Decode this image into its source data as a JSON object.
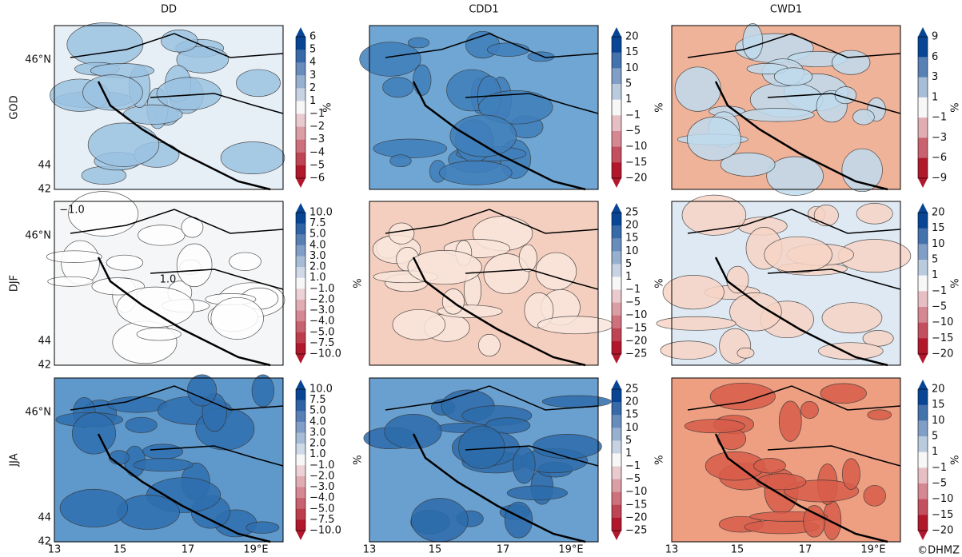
{
  "columns": [
    "DD",
    "CDD1",
    "CWD1"
  ],
  "rows": [
    "GOD",
    "DJF",
    "JJA"
  ],
  "y_ticks": [
    "46°N",
    "44",
    "42"
  ],
  "x_ticks": [
    "13",
    "15",
    "17",
    "19°E"
  ],
  "unit": "%",
  "colorbars": [
    [
      [
        "6",
        "5",
        "4",
        "3",
        "2",
        "1",
        "−1",
        "−2",
        "−3",
        "−4",
        "−5",
        "−6"
      ],
      [
        "20",
        "15",
        "10",
        "5",
        "1",
        "−1",
        "−5",
        "−10",
        "−15",
        "−20"
      ],
      [
        "9",
        "6",
        "3",
        "1",
        "−1",
        "−3",
        "−6",
        "−9"
      ]
    ],
    [
      [
        "10.0",
        "7.5",
        "5.0",
        "4.0",
        "3.0",
        "2.0",
        "1.0",
        "−1.0",
        "−2.0",
        "−3.0",
        "−4.0",
        "−5.0",
        "−7.5",
        "−10.0"
      ],
      [
        "25",
        "20",
        "15",
        "10",
        "5",
        "1",
        "−1",
        "−5",
        "−10",
        "−15",
        "−20",
        "−25"
      ],
      [
        "20",
        "15",
        "10",
        "5",
        "1",
        "−1",
        "−5",
        "−10",
        "−15",
        "−20"
      ]
    ],
    [
      [
        "10.0",
        "7.5",
        "5.0",
        "4.0",
        "3.0",
        "2.0",
        "1.0",
        "−1.0",
        "−2.0",
        "−3.0",
        "−4.0",
        "−5.0",
        "−7.5",
        "−10.0"
      ],
      [
        "25",
        "20",
        "15",
        "10",
        "5",
        "1",
        "−1",
        "−5",
        "−10",
        "−15",
        "−20",
        "−25"
      ],
      [
        "20",
        "15",
        "10",
        "5",
        "1",
        "−1",
        "−5",
        "−10",
        "−15",
        "−20"
      ]
    ]
  ],
  "annotations": [
    "−1.0",
    "1.0"
  ],
  "credit": "©DHMZ"
}
